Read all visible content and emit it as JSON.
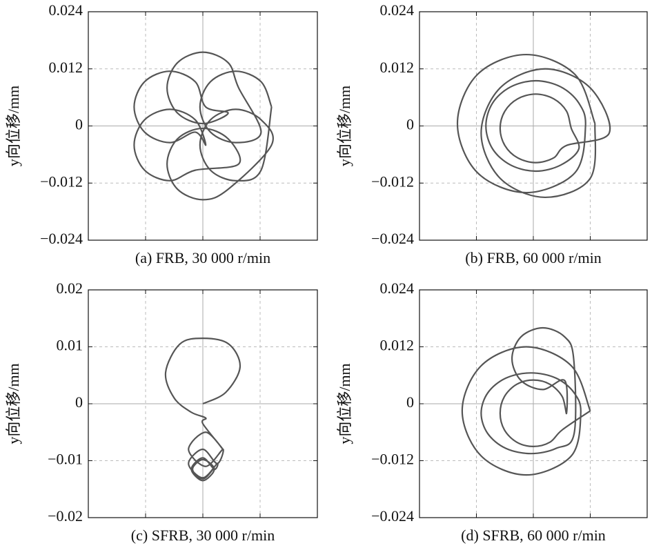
{
  "chart_data": [
    {
      "type": "line",
      "caption": "(a) FRB, 30 000 r/min",
      "ylabel": "y向位移/mm",
      "color": "#555555",
      "grid": true,
      "xlim": [
        -0.024,
        0.024
      ],
      "xticks": [
        -0.024,
        -0.012,
        0,
        0.012,
        0.024
      ],
      "ylim": [
        -0.024,
        0.024
      ],
      "yticks": [
        {
          "value": -0.024,
          "label": "−0.024"
        },
        {
          "value": -0.012,
          "label": "−0.012"
        },
        0,
        0.012,
        0.024
      ],
      "x": [
        0.0144,
        0.0122,
        0.0069,
        0.0016,
        -0.0006,
        0.0016,
        0.0069,
        0.0122,
        0.0075,
        0.0053,
        0,
        -0.0053,
        -0.0075,
        -0.0053,
        0,
        0.0053,
        0.0006,
        -0.0016,
        -0.0069,
        -0.0122,
        -0.0144,
        -0.0122,
        -0.0069,
        -0.0016,
        0.0006,
        -0.0016,
        -0.0069,
        -0.0122,
        -0.0144,
        -0.0122,
        -0.0069,
        -0.0016,
        0.0075,
        0.0053,
        0,
        -0.0053,
        -0.0075,
        -0.0053,
        0,
        0.0053,
        0.0144,
        0.0122,
        0.0069,
        0.0016,
        -0.0006,
        0.0016,
        0.0069,
        0.0122,
        0.0144
      ],
      "values": [
        0.004,
        0.0093,
        0.0115,
        0.0093,
        0.004,
        -0.0013,
        -0.0035,
        -0.0013,
        0.008,
        0.0133,
        0.0155,
        0.0133,
        0.008,
        0.0027,
        0.0005,
        0.0027,
        0.004,
        0.0093,
        0.0115,
        0.0093,
        0.004,
        -0.0013,
        -0.0035,
        -0.0013,
        -0.004,
        0.0013,
        0.0035,
        0.0013,
        -0.004,
        -0.0093,
        -0.0115,
        -0.0093,
        -0.008,
        -0.0027,
        -0.0005,
        -0.0027,
        -0.008,
        -0.0133,
        -0.0155,
        -0.0133,
        -0.004,
        0.0013,
        0.0035,
        0.0013,
        -0.004,
        -0.0093,
        -0.0115,
        -0.0093,
        0.004
      ]
    },
    {
      "type": "line",
      "caption": "(b) FRB, 60 000 r/min",
      "ylabel": "y向位移/mm",
      "color": "#555555",
      "grid": true,
      "xlim": [
        -0.024,
        0.024
      ],
      "xticks": [
        -0.024,
        -0.012,
        0,
        0.012,
        0.024
      ],
      "ylim": [
        -0.024,
        0.024
      ],
      "yticks": [
        {
          "value": -0.024,
          "label": "−0.024"
        },
        {
          "value": -0.012,
          "label": "−0.012"
        },
        0,
        0.012,
        0.024
      ],
      "x": [
        0.013,
        0.0088,
        -0.0015,
        -0.0118,
        -0.016,
        -0.0118,
        -0.0015,
        0.0088,
        0.011,
        0.0096,
        0.0058,
        0.0005,
        -0.0048,
        -0.0086,
        -0.01,
        -0.0086,
        -0.0048,
        0.0005,
        0.0058,
        0.0096,
        0.008,
        0.007,
        0.0043,
        0.0005,
        -0.0033,
        -0.006,
        -0.007,
        -0.006,
        -0.0033,
        0.0005,
        0.0043,
        0.007,
        0.016,
        0.012,
        0.0025,
        -0.007,
        -0.011,
        -0.007,
        0.0025,
        0.012,
        0.013
      ],
      "values": [
        0.0005,
        0.0108,
        0.015,
        0.0108,
        0.0005,
        -0.0098,
        -0.014,
        -0.0098,
        0,
        0.0048,
        0.0082,
        0.0095,
        0.0082,
        0.0048,
        0,
        -0.0048,
        -0.0082,
        -0.0095,
        -0.0082,
        -0.0048,
        -0.0005,
        0.0031,
        0.0057,
        0.0067,
        0.0057,
        0.0031,
        -0.0005,
        -0.0041,
        -0.0067,
        -0.0077,
        -0.0067,
        -0.0041,
        -0.0015,
        0.008,
        0.012,
        0.008,
        -0.0015,
        -0.011,
        -0.015,
        -0.011,
        0.0005
      ]
    },
    {
      "type": "line",
      "caption": "(c) SFRB, 30 000 r/min",
      "ylabel": "y向位移/mm",
      "color": "#555555",
      "grid": true,
      "xlim": [
        -0.02,
        0.02
      ],
      "xticks": [
        -0.02,
        -0.01,
        0,
        0.01,
        0.02
      ],
      "ylim": [
        -0.02,
        0.02
      ],
      "yticks": [
        {
          "value": -0.02,
          "label": "−0.02"
        },
        {
          "value": -0.01,
          "label": "−0.01"
        },
        0,
        0.01,
        0.02
      ],
      "x": [
        0,
        0.004,
        0.0065,
        0.0045,
        0,
        -0.004,
        -0.0065,
        -0.005,
        -0.002,
        0.0005,
        0,
        0.0035,
        0.0005,
        -0.0025,
        0.0005,
        0.0035,
        0.0025,
        0,
        -0.0025,
        0,
        0.0025,
        0.002,
        0,
        -0.002,
        0,
        0.002,
        0,
        -0.0018,
        0,
        0.0018
      ],
      "values": [
        0,
        0.002,
        0.0065,
        0.0105,
        0.0115,
        0.0105,
        0.0055,
        0.001,
        -0.0015,
        -0.0025,
        -0.0035,
        -0.008,
        -0.005,
        -0.008,
        -0.011,
        -0.008,
        -0.0105,
        -0.008,
        -0.0105,
        -0.013,
        -0.0105,
        -0.0115,
        -0.0095,
        -0.0115,
        -0.0135,
        -0.0115,
        -0.0098,
        -0.0115,
        -0.0132,
        -0.0115
      ]
    },
    {
      "type": "line",
      "caption": "(d) SFRB, 60 000 r/min",
      "ylabel": "y向位移/mm",
      "color": "#555555",
      "grid": true,
      "xlim": [
        -0.024,
        0.024
      ],
      "xticks": [
        -0.024,
        -0.012,
        0,
        0.012,
        0.024
      ],
      "ylim": [
        -0.024,
        0.024
      ],
      "yticks": [
        {
          "value": -0.024,
          "label": "−0.024"
        },
        {
          "value": -0.012,
          "label": "−0.012"
        },
        0,
        0.012,
        0.024
      ],
      "x": [
        0.012,
        0.008,
        -0.0015,
        -0.011,
        -0.015,
        -0.011,
        -0.0015,
        0.008,
        0.01,
        0.0086,
        0.0048,
        -0.0005,
        -0.0058,
        -0.0096,
        -0.011,
        -0.0096,
        -0.0058,
        -0.0005,
        0.0048,
        0.0086,
        0.0085,
        0.0066,
        0.002,
        -0.0026,
        -0.0045,
        -0.0026,
        0.002,
        0.0066,
        0.007,
        0.0061,
        0.0035,
        0,
        -0.0035,
        -0.0061,
        -0.007,
        -0.0061,
        -0.0035,
        0,
        0.0035,
        0.0061,
        0.012
      ],
      "values": [
        -0.0015,
        0.008,
        0.012,
        0.008,
        -0.0015,
        -0.011,
        -0.015,
        -0.011,
        -0.002,
        0.0023,
        0.0054,
        0.0065,
        0.0054,
        0.0023,
        -0.002,
        -0.0063,
        -0.0094,
        -0.0105,
        -0.0094,
        -0.0063,
        0.0095,
        0.0141,
        0.016,
        0.0141,
        0.0095,
        0.0049,
        0.003,
        0.0049,
        -0.002,
        0.0015,
        0.0041,
        0.005,
        0.0041,
        0.0015,
        -0.002,
        -0.0055,
        -0.0081,
        -0.009,
        -0.0081,
        -0.0055,
        -0.0015
      ]
    }
  ]
}
